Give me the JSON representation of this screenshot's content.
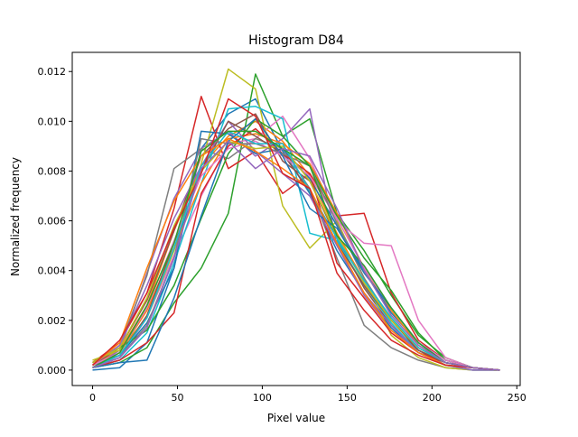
{
  "chart_data": {
    "type": "line",
    "title": "Histogram D84",
    "xlabel": "Pixel value",
    "ylabel": "Normalized frequency",
    "xlim": [
      -12,
      252
    ],
    "ylim": [
      -0.00062,
      0.01277
    ],
    "xticks": [
      "0",
      "50",
      "100",
      "150",
      "200",
      "250"
    ],
    "xtick_values": [
      0,
      50,
      100,
      150,
      200,
      250
    ],
    "yticks": [
      "0.000",
      "0.002",
      "0.004",
      "0.006",
      "0.008",
      "0.010",
      "0.012"
    ],
    "ytick_values": [
      0,
      0.002,
      0.004,
      0.006,
      0.008,
      0.01,
      0.012
    ],
    "grid": false,
    "legend": false,
    "x": [
      0,
      16,
      32,
      48,
      64,
      80,
      96,
      112,
      128,
      144,
      160,
      176,
      192,
      208,
      224,
      240
    ],
    "series": [
      {
        "color": "#1f77b4",
        "values": [
          0.0,
          0.0001,
          0.0011,
          0.0041,
          0.0089,
          0.0103,
          0.0109,
          0.0088,
          0.0071,
          0.0048,
          0.0031,
          0.0017,
          0.0007,
          0.0002,
          0.0001,
          0.0
        ]
      },
      {
        "color": "#ff7f0e",
        "values": [
          0.0002,
          0.0008,
          0.0026,
          0.0056,
          0.0082,
          0.0094,
          0.01,
          0.0092,
          0.0078,
          0.0055,
          0.0036,
          0.0021,
          0.0009,
          0.0003,
          0.0001,
          0.0
        ]
      },
      {
        "color": "#2ca02c",
        "values": [
          0.0001,
          0.0003,
          0.0009,
          0.0027,
          0.0041,
          0.0063,
          0.0119,
          0.0094,
          0.0101,
          0.0063,
          0.0048,
          0.003,
          0.0014,
          0.0005,
          0.0001,
          0.0
        ]
      },
      {
        "color": "#d62728",
        "values": [
          0.0003,
          0.0011,
          0.0031,
          0.0065,
          0.011,
          0.0081,
          0.0088,
          0.0071,
          0.0079,
          0.0062,
          0.0063,
          0.0031,
          0.0012,
          0.0004,
          0.0001,
          0.0
        ]
      },
      {
        "color": "#9467bd",
        "values": [
          0.0001,
          0.0008,
          0.0039,
          0.0069,
          0.0089,
          0.0096,
          0.0086,
          0.0093,
          0.0105,
          0.005,
          0.003,
          0.0016,
          0.0008,
          0.0003,
          0.0001,
          0.0
        ]
      },
      {
        "color": "#8c564b",
        "values": [
          0.0002,
          0.0009,
          0.0028,
          0.0056,
          0.0086,
          0.0097,
          0.0103,
          0.0084,
          0.0076,
          0.0053,
          0.0033,
          0.0018,
          0.0008,
          0.0002,
          0.0001,
          0.0
        ]
      },
      {
        "color": "#e377c2",
        "values": [
          0.0001,
          0.0005,
          0.0021,
          0.0046,
          0.007,
          0.0091,
          0.0093,
          0.0102,
          0.0085,
          0.006,
          0.0051,
          0.005,
          0.002,
          0.0005,
          0.0001,
          0.0
        ]
      },
      {
        "color": "#7f7f7f",
        "values": [
          0.0002,
          0.001,
          0.0038,
          0.0081,
          0.0089,
          0.0085,
          0.0093,
          0.0089,
          0.0073,
          0.0045,
          0.0018,
          0.0009,
          0.0004,
          0.0001,
          0.0,
          0.0
        ]
      },
      {
        "color": "#bcbd22",
        "values": [
          0.0004,
          0.0008,
          0.0021,
          0.0048,
          0.0083,
          0.0121,
          0.0113,
          0.0066,
          0.0049,
          0.006,
          0.0037,
          0.0014,
          0.0005,
          0.0001,
          0.0,
          0.0
        ]
      },
      {
        "color": "#17becf",
        "values": [
          0.0001,
          0.0004,
          0.0015,
          0.0043,
          0.0075,
          0.0105,
          0.0106,
          0.0101,
          0.0055,
          0.0052,
          0.0034,
          0.0019,
          0.0007,
          0.0002,
          0.0,
          0.0
        ]
      },
      {
        "color": "#1f77b4",
        "values": [
          0.0002,
          0.0006,
          0.0019,
          0.0041,
          0.0096,
          0.0095,
          0.0087,
          0.0089,
          0.0077,
          0.0058,
          0.004,
          0.0023,
          0.0011,
          0.0004,
          0.0001,
          0.0
        ]
      },
      {
        "color": "#ff7f0e",
        "values": [
          0.0001,
          0.0007,
          0.0024,
          0.0049,
          0.0075,
          0.0093,
          0.0095,
          0.0091,
          0.0083,
          0.0063,
          0.0041,
          0.0024,
          0.001,
          0.0003,
          0.0001,
          0.0
        ]
      },
      {
        "color": "#2ca02c",
        "values": [
          0.0003,
          0.0009,
          0.0016,
          0.0034,
          0.0061,
          0.0087,
          0.0101,
          0.0094,
          0.0082,
          0.0062,
          0.0045,
          0.0032,
          0.0015,
          0.0004,
          0.0001,
          0.0
        ]
      },
      {
        "color": "#d62728",
        "values": [
          0.0001,
          0.0004,
          0.0011,
          0.0023,
          0.0071,
          0.009,
          0.0097,
          0.0087,
          0.0079,
          0.0043,
          0.0029,
          0.0015,
          0.0007,
          0.0003,
          0.0001,
          0.0
        ]
      },
      {
        "color": "#9467bd",
        "values": [
          0.0002,
          0.001,
          0.0034,
          0.0061,
          0.0082,
          0.01,
          0.0088,
          0.0079,
          0.007,
          0.005,
          0.0031,
          0.0018,
          0.0007,
          0.0002,
          0.0,
          0.0
        ]
      },
      {
        "color": "#8c564b",
        "values": [
          0.0001,
          0.0006,
          0.0022,
          0.0051,
          0.008,
          0.01,
          0.0094,
          0.0087,
          0.0072,
          0.0051,
          0.0034,
          0.002,
          0.0008,
          0.0003,
          0.0001,
          0.0
        ]
      },
      {
        "color": "#e377c2",
        "values": [
          0.0002,
          0.0007,
          0.0025,
          0.0052,
          0.0078,
          0.0089,
          0.0092,
          0.0086,
          0.0078,
          0.0061,
          0.0041,
          0.0025,
          0.0011,
          0.0004,
          0.0001,
          0.0
        ]
      },
      {
        "color": "#7f7f7f",
        "values": [
          0.0001,
          0.0005,
          0.0018,
          0.0045,
          0.0093,
          0.0091,
          0.0091,
          0.0087,
          0.0082,
          0.0059,
          0.0037,
          0.002,
          0.0009,
          0.0003,
          0.0001,
          0.0
        ]
      },
      {
        "color": "#bcbd22",
        "values": [
          0.0003,
          0.0009,
          0.0029,
          0.0058,
          0.008,
          0.0092,
          0.0089,
          0.009,
          0.0076,
          0.0054,
          0.0035,
          0.002,
          0.0009,
          0.0003,
          0.0001,
          0.0
        ]
      },
      {
        "color": "#17becf",
        "values": [
          0.0001,
          0.0006,
          0.0021,
          0.0049,
          0.0082,
          0.0096,
          0.0091,
          0.0091,
          0.0072,
          0.0053,
          0.0036,
          0.0021,
          0.0009,
          0.0003,
          0.0001,
          0.0
        ]
      },
      {
        "color": "#1f77b4",
        "values": [
          0.0001,
          0.0003,
          0.0004,
          0.0029,
          0.0062,
          0.0092,
          0.0101,
          0.0086,
          0.0065,
          0.0057,
          0.0039,
          0.0025,
          0.0011,
          0.0003,
          0.0001,
          0.0
        ]
      },
      {
        "color": "#ff7f0e",
        "values": [
          0.0002,
          0.0011,
          0.0041,
          0.0068,
          0.0086,
          0.0093,
          0.0088,
          0.0081,
          0.0073,
          0.0051,
          0.0031,
          0.0016,
          0.0007,
          0.0002,
          0.0001,
          0.0
        ]
      },
      {
        "color": "#2ca02c",
        "values": [
          0.0001,
          0.0007,
          0.0026,
          0.0051,
          0.0088,
          0.0096,
          0.0096,
          0.0089,
          0.0082,
          0.0054,
          0.0042,
          0.0025,
          0.0011,
          0.0003,
          0.0001,
          0.0
        ]
      },
      {
        "color": "#d62728",
        "values": [
          0.0002,
          0.0012,
          0.0031,
          0.0057,
          0.0079,
          0.0109,
          0.0102,
          0.0079,
          0.0073,
          0.0039,
          0.0024,
          0.0012,
          0.0006,
          0.0002,
          0.0001,
          0.0
        ]
      },
      {
        "color": "#9467bd",
        "values": [
          0.0001,
          0.0005,
          0.0017,
          0.0045,
          0.0081,
          0.0092,
          0.0081,
          0.0089,
          0.0086,
          0.0065,
          0.004,
          0.0022,
          0.001,
          0.0003,
          0.0001,
          0.0
        ]
      }
    ]
  }
}
